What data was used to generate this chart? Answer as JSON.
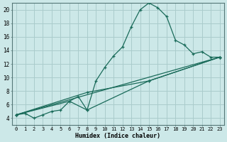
{
  "xlabel": "Humidex (Indice chaleur)",
  "background_color": "#cce8e8",
  "grid_color": "#aacccc",
  "line_color": "#1a6b5a",
  "xlim": [
    -0.5,
    23.5
  ],
  "ylim": [
    3.0,
    21.0
  ],
  "yticks": [
    4,
    6,
    8,
    10,
    12,
    14,
    16,
    18,
    20
  ],
  "xticks": [
    0,
    1,
    2,
    3,
    4,
    5,
    6,
    7,
    8,
    9,
    10,
    11,
    12,
    13,
    14,
    15,
    16,
    17,
    18,
    19,
    20,
    21,
    22,
    23
  ],
  "series": [
    {
      "x": [
        0,
        1,
        2,
        3,
        4,
        5,
        6,
        7,
        8,
        9,
        10,
        11,
        12,
        13,
        14,
        15,
        16,
        17,
        18,
        19,
        20,
        21,
        22,
        23
      ],
      "y": [
        4.5,
        4.7,
        4.0,
        4.5,
        5.0,
        5.2,
        6.5,
        7.2,
        5.2,
        9.5,
        11.5,
        13.2,
        14.5,
        17.5,
        20.0,
        21.0,
        20.3,
        19.0,
        15.5,
        14.8,
        13.5,
        13.8,
        13.0,
        13.0
      ]
    },
    {
      "x": [
        0,
        23
      ],
      "y": [
        4.5,
        13.0
      ]
    },
    {
      "x": [
        0,
        8,
        15,
        23
      ],
      "y": [
        4.5,
        7.8,
        9.5,
        13.0
      ]
    },
    {
      "x": [
        0,
        6,
        8,
        15,
        23
      ],
      "y": [
        4.5,
        6.5,
        5.2,
        9.5,
        13.0
      ]
    }
  ]
}
